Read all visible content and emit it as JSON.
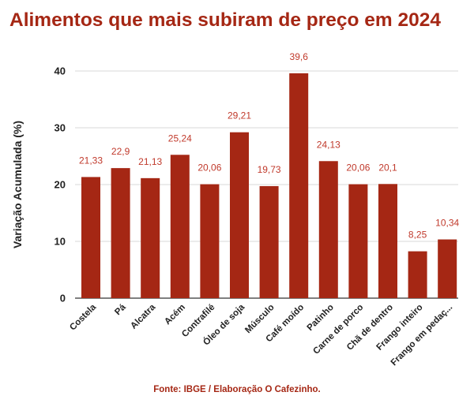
{
  "title": "Alimentos que mais subiram de preço em 2024",
  "source": "Fonte: IBGE / Elaboração O Cafezinho.",
  "colors": {
    "bar": "#a52714",
    "title": "#a52714",
    "data_label": "#c0392b",
    "grid": "#d9d9d9"
  },
  "chart_data": {
    "type": "bar",
    "title": "Alimentos que mais subiram de preço em 2024",
    "xlabel": "",
    "ylabel": "Variação Acumulada (%)",
    "ylim": [
      0,
      45
    ],
    "yticks": [
      0,
      10,
      20,
      30,
      40
    ],
    "grid": true,
    "categories": [
      "Costela",
      "Pá",
      "Alcatra",
      "Acém",
      "Contrafilé",
      "Óleo de soja",
      "Músculo",
      "Café moído",
      "Patinho",
      "Carne de porco",
      "Chã de dentro",
      "Frango inteiro",
      "Frango em pedaç..."
    ],
    "values": [
      21.33,
      22.9,
      21.13,
      25.24,
      20.06,
      29.21,
      19.73,
      39.6,
      24.13,
      20.06,
      20.1,
      8.25,
      10.34
    ],
    "data_labels": [
      "21,33",
      "22,9",
      "21,13",
      "25,24",
      "20,06",
      "29,21",
      "19,73",
      "39,6",
      "24,13",
      "20,06",
      "20,1",
      "8,25",
      "10,34"
    ]
  }
}
